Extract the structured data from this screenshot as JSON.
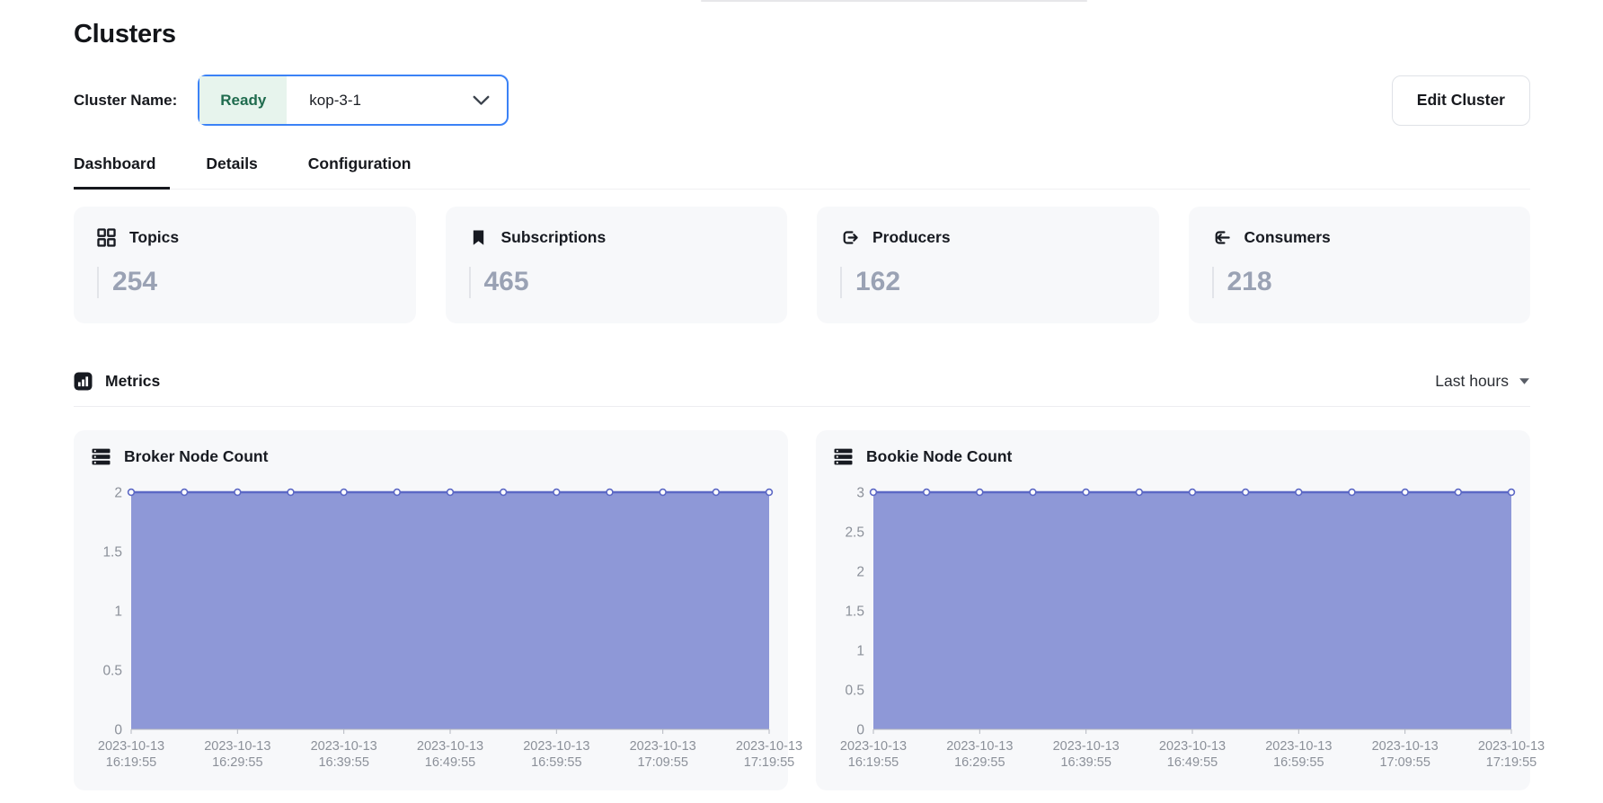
{
  "header": {
    "title": "Clusters",
    "cluster_name_label": "Cluster Name:",
    "cluster_status": "Ready",
    "cluster_value": "kop-3-1",
    "edit_button_label": "Edit Cluster"
  },
  "tabs": [
    {
      "label": "Dashboard",
      "active": true
    },
    {
      "label": "Details",
      "active": false
    },
    {
      "label": "Configuration",
      "active": false
    }
  ],
  "stats": [
    {
      "label": "Topics",
      "value": "254",
      "icon": "grid-icon"
    },
    {
      "label": "Subscriptions",
      "value": "465",
      "icon": "bookmark-icon"
    },
    {
      "label": "Producers",
      "value": "162",
      "icon": "export-arrow-icon"
    },
    {
      "label": "Consumers",
      "value": "218",
      "icon": "import-arrow-icon"
    }
  ],
  "metrics": {
    "label": "Metrics",
    "range_selector": "Last hours"
  },
  "colors": {
    "accent_blue": "#3b82f6",
    "ready_badge_bg": "#e7f4ed",
    "ready_badge_text": "#1f6b4e",
    "card_bg": "#f7f8fa",
    "stat_value_text": "#9aa2b4",
    "chart_fill": "#8e98d7",
    "chart_line": "#5c68c5",
    "grid": "#ebebf0",
    "axis": "#b5b8c0",
    "axis_text": "#8b9099"
  },
  "chart_data": [
    {
      "type": "area",
      "title": "Broker Node Count",
      "num_points": 13,
      "values": [
        2,
        2,
        2,
        2,
        2,
        2,
        2,
        2,
        2,
        2,
        2,
        2,
        2
      ],
      "ylim": [
        0,
        2
      ],
      "yticks": [
        0,
        0.5,
        1,
        1.5,
        2
      ],
      "grid": true,
      "xtick_labels": [
        {
          "date": "2023-10-13",
          "time": "16:19:55"
        },
        {
          "date": "2023-10-13",
          "time": "16:29:55"
        },
        {
          "date": "2023-10-13",
          "time": "16:39:55"
        },
        {
          "date": "2023-10-13",
          "time": "16:49:55"
        },
        {
          "date": "2023-10-13",
          "time": "16:59:55"
        },
        {
          "date": "2023-10-13",
          "time": "17:09:55"
        },
        {
          "date": "2023-10-13",
          "time": "17:19:55"
        }
      ]
    },
    {
      "type": "area",
      "title": "Bookie Node Count",
      "num_points": 13,
      "values": [
        3,
        3,
        3,
        3,
        3,
        3,
        3,
        3,
        3,
        3,
        3,
        3,
        3
      ],
      "ylim": [
        0,
        3
      ],
      "yticks": [
        0,
        0.5,
        1,
        1.5,
        2,
        2.5,
        3
      ],
      "grid": true,
      "xtick_labels": [
        {
          "date": "2023-10-13",
          "time": "16:19:55"
        },
        {
          "date": "2023-10-13",
          "time": "16:29:55"
        },
        {
          "date": "2023-10-13",
          "time": "16:39:55"
        },
        {
          "date": "2023-10-13",
          "time": "16:49:55"
        },
        {
          "date": "2023-10-13",
          "time": "16:59:55"
        },
        {
          "date": "2023-10-13",
          "time": "17:09:55"
        },
        {
          "date": "2023-10-13",
          "time": "17:19:55"
        }
      ]
    }
  ]
}
